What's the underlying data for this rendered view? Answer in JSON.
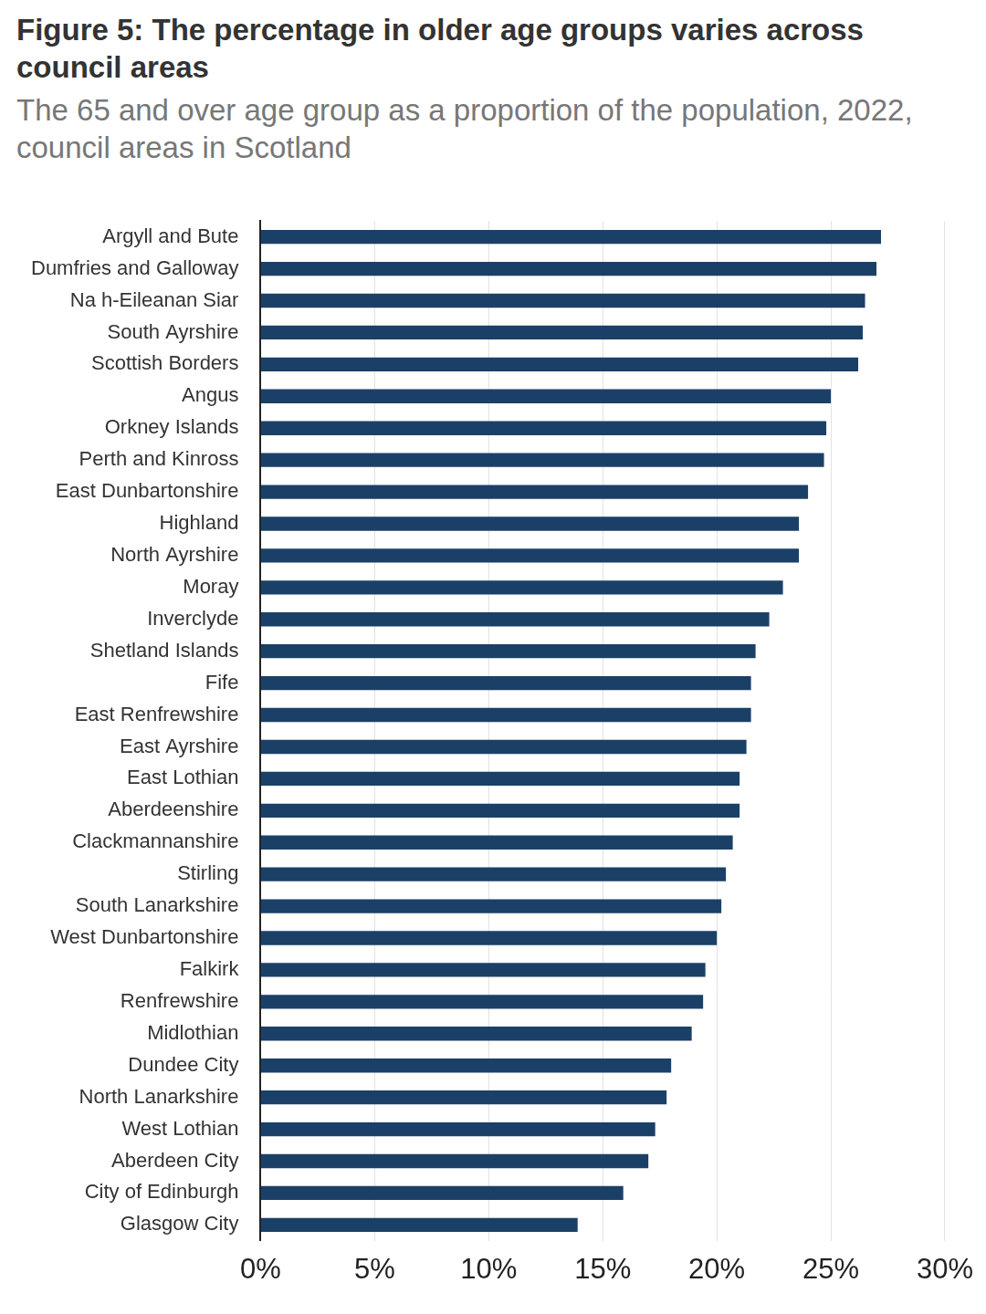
{
  "chart_data": {
    "type": "bar",
    "orientation": "horizontal",
    "title": "Figure 5: The percentage in older age groups varies across council areas",
    "subtitle": "The 65 and over age group as a proportion of the population, 2022, council areas in Scotland",
    "categories": [
      "Argyll and Bute",
      "Dumfries and Galloway",
      "Na h-Eileanan Siar",
      "South Ayrshire",
      "Scottish Borders",
      "Angus",
      "Orkney Islands",
      "Perth and Kinross",
      "East Dunbartonshire",
      "Highland",
      "North Ayrshire",
      "Moray",
      "Inverclyde",
      "Shetland Islands",
      "Fife",
      "East Renfrewshire",
      "East Ayrshire",
      "East Lothian",
      "Aberdeenshire",
      "Clackmannanshire",
      "Stirling",
      "South Lanarkshire",
      "West Dunbartonshire",
      "Falkirk",
      "Renfrewshire",
      "Midlothian",
      "Dundee City",
      "North Lanarkshire",
      "West Lothian",
      "Aberdeen City",
      "City of Edinburgh",
      "Glasgow City"
    ],
    "values": [
      27.2,
      27.0,
      26.5,
      26.4,
      26.2,
      25.0,
      24.8,
      24.7,
      24.0,
      23.6,
      23.6,
      22.9,
      22.3,
      21.7,
      21.5,
      21.5,
      21.3,
      21.0,
      21.0,
      20.7,
      20.4,
      20.2,
      20.0,
      19.5,
      19.4,
      18.9,
      18.0,
      17.8,
      17.3,
      17.0,
      15.9,
      13.9
    ],
    "color": "#1b4068",
    "xlim": [
      0,
      30
    ],
    "xticks": [
      {
        "value": 0,
        "label": "0%"
      },
      {
        "value": 5,
        "label": "5%"
      },
      {
        "value": 10,
        "label": "10%"
      },
      {
        "value": 15,
        "label": "15%"
      },
      {
        "value": 20,
        "label": "20%"
      },
      {
        "value": 25,
        "label": "25%"
      },
      {
        "value": 30,
        "label": "30%"
      }
    ],
    "grid": true
  }
}
